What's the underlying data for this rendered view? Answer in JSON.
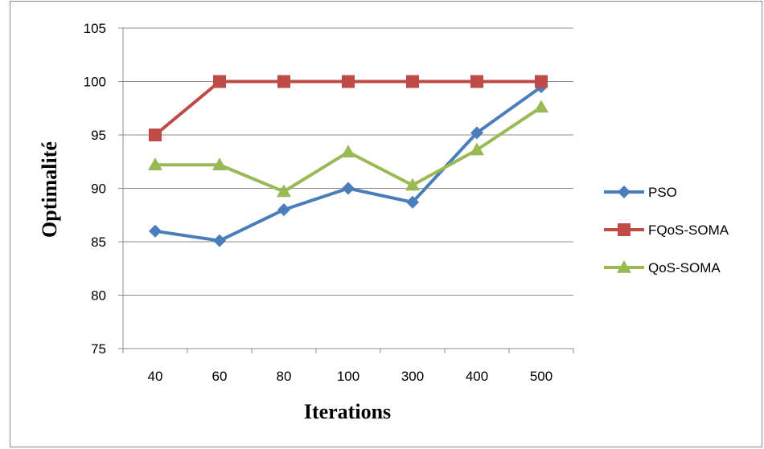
{
  "chart_data": {
    "type": "line",
    "title": "",
    "xlabel": "Iterations",
    "ylabel": "Optimalité",
    "categories": [
      "40",
      "60",
      "80",
      "100",
      "300",
      "400",
      "500"
    ],
    "ylim": [
      75,
      105
    ],
    "yticks": [
      75,
      80,
      85,
      90,
      95,
      100,
      105
    ],
    "grid": "horizontal",
    "legend_position": "right",
    "series": [
      {
        "name": "PSO",
        "color": "#4a7ebb",
        "marker": "diamond",
        "values": [
          86,
          85.1,
          88,
          90,
          88.7,
          95.2,
          99.5
        ]
      },
      {
        "name": "FQoS-SOMA",
        "color": "#be4b48",
        "marker": "square",
        "values": [
          95,
          100,
          100,
          100,
          100,
          100,
          100
        ]
      },
      {
        "name": "QoS-SOMA",
        "color": "#98b954",
        "marker": "triangle",
        "values": [
          92.2,
          92.2,
          89.7,
          93.4,
          90.3,
          93.6,
          97.6
        ]
      }
    ]
  }
}
